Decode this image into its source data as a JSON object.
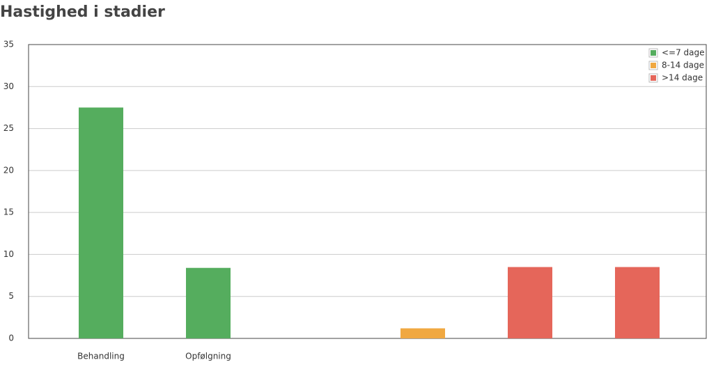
{
  "chart_data": {
    "type": "bar",
    "title": "Hastighed i stadier",
    "categories": [
      "Behandling",
      "Opfølgning",
      null,
      null,
      null,
      null
    ],
    "series": [
      {
        "name": "<=7 dage",
        "color": "#55ad5e",
        "values": [
          27.5,
          8.4,
          null,
          null,
          null,
          null
        ]
      },
      {
        "name": "8-14 dage",
        "color": "#f0a841",
        "values": [
          null,
          null,
          null,
          1.2,
          null,
          null
        ]
      },
      {
        "name": ">14 dage",
        "color": "#e5665a",
        "values": [
          null,
          null,
          null,
          null,
          8.5,
          8.5
        ]
      }
    ],
    "ylim": [
      0,
      35
    ],
    "yticks": [
      0,
      5,
      10,
      15,
      20,
      25,
      30,
      35
    ],
    "grid": true,
    "legend": "top-right"
  }
}
